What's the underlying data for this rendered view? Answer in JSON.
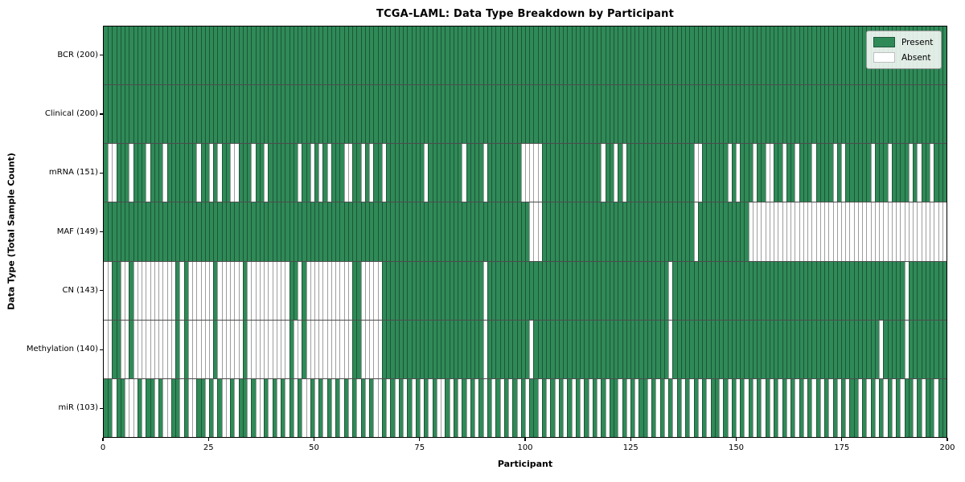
{
  "title": "TCGA-LAML: Data Type Breakdown by Participant",
  "axes": {
    "x_label": "Participant",
    "y_label": "Data Type (Total Sample Count)",
    "x_ticks": [
      "0",
      "25",
      "50",
      "75",
      "100",
      "125",
      "150",
      "175",
      "200"
    ]
  },
  "legend": {
    "present_label": "Present",
    "absent_label": "Absent"
  },
  "colors": {
    "present": "#2f8a58",
    "absent": "#ffffff",
    "cell_edge": "rgba(0,0,0,0.38)",
    "plot_border": "#000000"
  },
  "chart_data": {
    "type": "heatmap",
    "title": "TCGA-LAML: Data Type Breakdown by Participant",
    "xlabel": "Participant",
    "ylabel": "Data Type (Total Sample Count)",
    "x_range": [
      0,
      200
    ],
    "n_participants": 200,
    "legend_entries": [
      "Present",
      "Absent"
    ],
    "legend_position": "upper right",
    "value_encoding": {
      "present": 1,
      "absent": 0
    },
    "rows": [
      {
        "name": "BCR",
        "label": "BCR (200)",
        "present_count": 200,
        "absent_indices": []
      },
      {
        "name": "Clinical",
        "label": "Clinical (200)",
        "present_count": 200,
        "absent_indices": []
      },
      {
        "name": "mRNA",
        "label": "mRNA (151)",
        "present_count": 151,
        "absent_indices": [
          1,
          2,
          6,
          10,
          14,
          22,
          25,
          27,
          30,
          31,
          35,
          38,
          46,
          49,
          51,
          53,
          57,
          58,
          61,
          63,
          66,
          76,
          85,
          90,
          99,
          100,
          101,
          102,
          103,
          118,
          121,
          123,
          140,
          141,
          148,
          150,
          154,
          157,
          158,
          161,
          164,
          168,
          173,
          175,
          182,
          186,
          191,
          193,
          196
        ]
      },
      {
        "name": "MAF",
        "label": "MAF (149)",
        "present_count": 149,
        "absent_indices": [
          101,
          102,
          103,
          140,
          153,
          154,
          155,
          156,
          157,
          158,
          159,
          160,
          161,
          162,
          163,
          164,
          165,
          166,
          167,
          168,
          169,
          170,
          171,
          172,
          173,
          174,
          175,
          176,
          177,
          178,
          179,
          180,
          181,
          182,
          183,
          184,
          185,
          186,
          187,
          188,
          189,
          190,
          191,
          192,
          193,
          194,
          195,
          196,
          197,
          198,
          199
        ]
      },
      {
        "name": "CN",
        "label": "CN (143)",
        "present_count": 143,
        "absent_indices": [
          0,
          1,
          4,
          5,
          7,
          8,
          9,
          10,
          11,
          12,
          13,
          14,
          15,
          16,
          18,
          20,
          21,
          22,
          23,
          24,
          25,
          27,
          28,
          29,
          30,
          31,
          32,
          34,
          35,
          36,
          37,
          38,
          39,
          40,
          41,
          42,
          43,
          46,
          48,
          49,
          50,
          51,
          52,
          53,
          54,
          55,
          56,
          57,
          58,
          61,
          62,
          63,
          64,
          65,
          90,
          134,
          190
        ]
      },
      {
        "name": "Methylation",
        "label": "Methylation (140)",
        "present_count": 140,
        "absent_indices": [
          0,
          1,
          4,
          5,
          7,
          8,
          9,
          10,
          11,
          12,
          13,
          14,
          15,
          16,
          18,
          20,
          21,
          22,
          23,
          24,
          25,
          27,
          28,
          29,
          30,
          31,
          32,
          34,
          35,
          36,
          37,
          38,
          39,
          40,
          41,
          42,
          43,
          45,
          46,
          48,
          49,
          50,
          51,
          52,
          53,
          54,
          55,
          56,
          57,
          58,
          61,
          62,
          63,
          64,
          65,
          90,
          101,
          134,
          184,
          190
        ]
      },
      {
        "name": "miR",
        "label": "miR (103)",
        "present_count": 103,
        "absent_indices": [
          2,
          5,
          6,
          7,
          9,
          12,
          14,
          15,
          18,
          20,
          21,
          24,
          26,
          28,
          29,
          31,
          34,
          36,
          37,
          39,
          41,
          43,
          45,
          47,
          48,
          50,
          52,
          54,
          56,
          58,
          60,
          62,
          64,
          65,
          67,
          69,
          71,
          73,
          75,
          77,
          79,
          80,
          82,
          84,
          86,
          88,
          90,
          92,
          94,
          96,
          98,
          100,
          103,
          105,
          107,
          109,
          111,
          113,
          115,
          117,
          119,
          122,
          124,
          126,
          129,
          131,
          133,
          135,
          137,
          139,
          141,
          143,
          146,
          148,
          150,
          152,
          154,
          156,
          158,
          160,
          162,
          164,
          166,
          168,
          170,
          172,
          174,
          176,
          179,
          181,
          183,
          185,
          187,
          189,
          192,
          194,
          197
        ]
      }
    ]
  }
}
